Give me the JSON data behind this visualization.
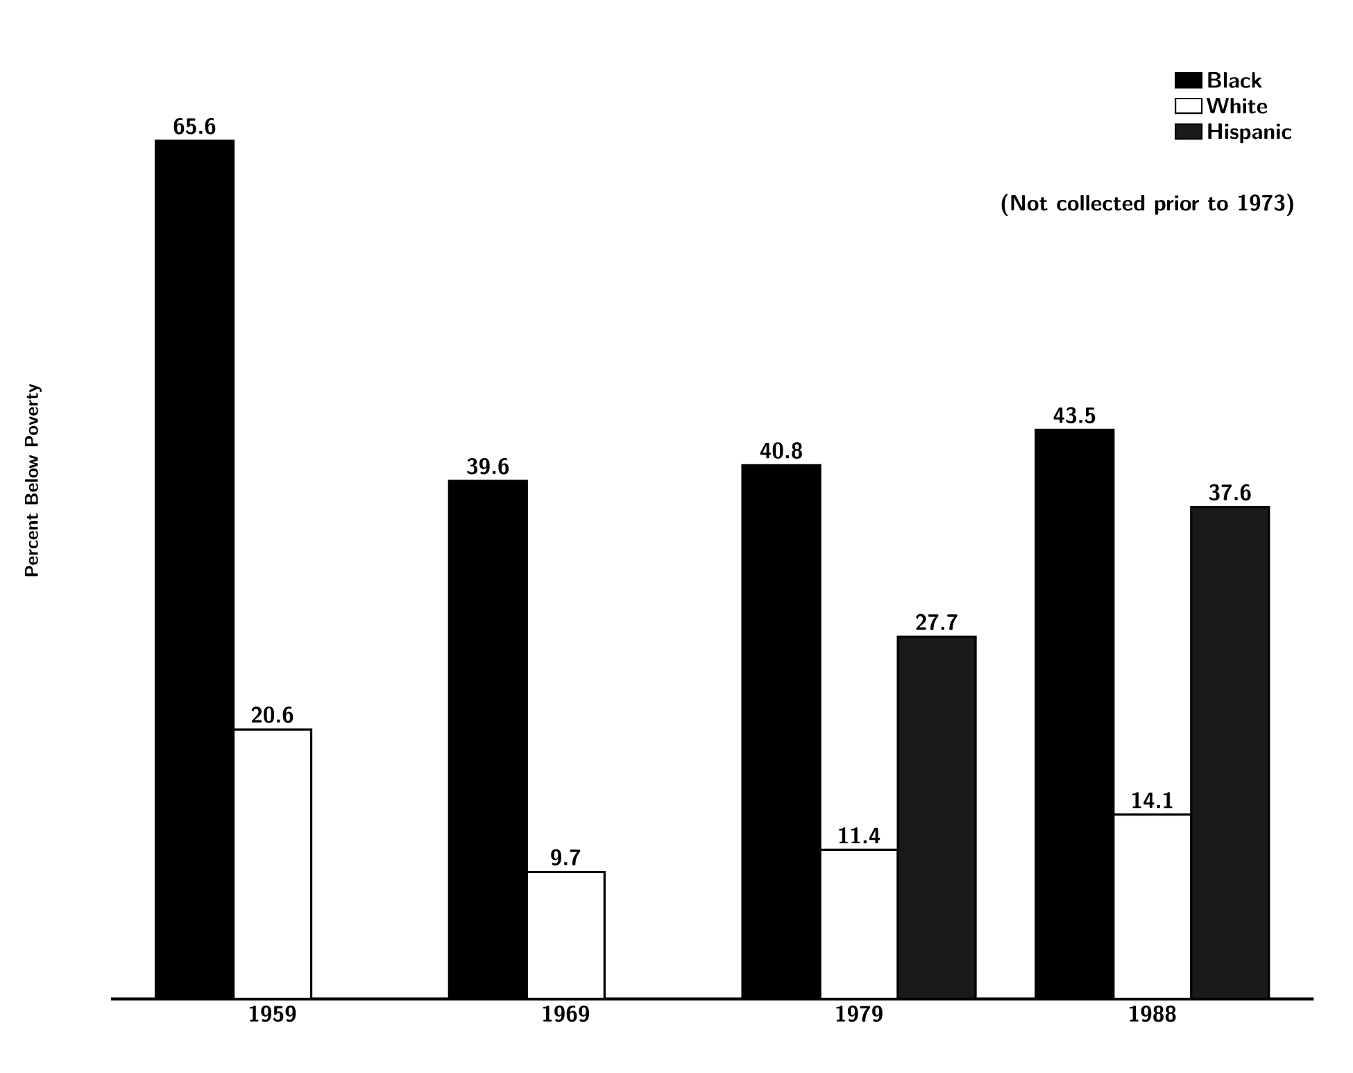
{
  "chart_data": {
    "type": "bar",
    "ylabel": "Percent Below Poverty",
    "categories": [
      "1959",
      "1969",
      "1979",
      "1988"
    ],
    "series": [
      {
        "name": "Black",
        "color": "#000000",
        "values": [
          65.6,
          39.6,
          40.8,
          43.5
        ]
      },
      {
        "name": "White",
        "color": "#ffffff",
        "values": [
          20.6,
          9.7,
          11.4,
          14.1
        ]
      },
      {
        "name": "Hispanic",
        "color": "#1a1a1a",
        "values": [
          null,
          null,
          27.7,
          37.6
        ]
      }
    ],
    "annotations": [
      "(Not collected prior to 1973)"
    ],
    "data_labels": true,
    "legend": "top right"
  }
}
